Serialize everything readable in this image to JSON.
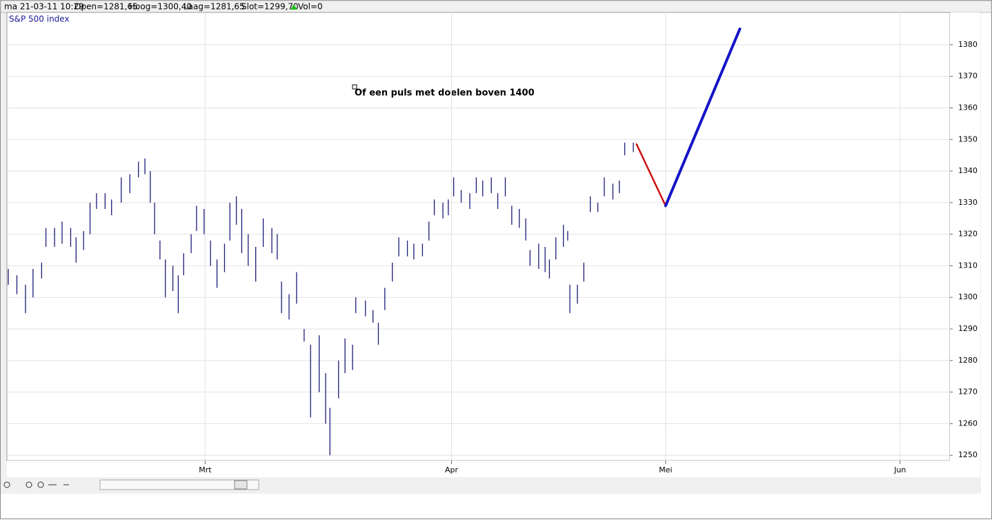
{
  "header": {
    "date": "ma 21-03-11 10:29",
    "open": "Open=1281,65",
    "high": "Hoog=1300,40",
    "low": "Laag=1281,65",
    "close": "Slot=1299,70",
    "volume": "Vol=0"
  },
  "chart_data": {
    "type": "hilo",
    "title": "S&P 500 index",
    "annotation": "Of een puls met doelen boven 1400",
    "xlim": [
      -18.3,
      69.1
    ],
    "xticks": [
      {
        "value": 0,
        "label": "Mrt"
      },
      {
        "value": 22.9,
        "label": "Apr"
      },
      {
        "value": 42.8,
        "label": "Mei"
      },
      {
        "value": 64.6,
        "label": "Jun"
      }
    ],
    "ylim": [
      1248.3,
      1389.8
    ],
    "yticks": [
      1250,
      1260,
      1270,
      1280,
      1290,
      1300,
      1310,
      1320,
      1330,
      1340,
      1350,
      1360,
      1370,
      1380
    ],
    "grid": true,
    "series": [
      {
        "color": "#1a1a78",
        "x": [
          -18.3,
          -17.5,
          -16.7,
          -16.0,
          -15.2,
          -14.8,
          -14.0,
          -13.3,
          -12.5,
          -12.0,
          -11.3,
          -10.7,
          -10.1,
          -9.3,
          -8.7,
          -7.8,
          -7.0,
          -6.2,
          -5.6,
          -5.1,
          -4.7,
          -4.2,
          -3.7,
          -3.0,
          -2.5,
          -2.0,
          -1.3,
          -0.8,
          -0.1,
          0.5,
          1.1,
          1.8,
          2.3,
          2.9,
          3.4,
          4.0,
          4.7,
          5.4,
          6.2,
          6.7,
          7.1,
          7.8,
          8.5,
          9.2,
          9.8,
          10.6,
          11.2,
          11.6,
          12.4,
          13.0,
          13.7,
          14.0,
          14.9,
          15.6,
          16.1,
          16.7,
          17.4,
          18.0,
          18.8,
          19.4,
          20.2,
          20.8,
          21.3,
          22.1,
          22.6,
          23.1,
          23.8,
          24.6,
          25.2,
          25.8,
          26.6,
          27.2,
          27.9,
          28.5,
          29.2,
          29.8,
          30.2,
          31.0,
          31.6,
          32.0,
          32.6,
          33.3,
          33.7,
          33.9,
          34.6,
          35.2,
          35.8,
          36.5,
          37.1,
          37.9,
          38.5,
          39.0,
          39.8
        ],
        "high": [
          1309,
          1307,
          1304,
          1309,
          1311,
          1322,
          1322,
          1324,
          1322,
          1319,
          1321,
          1330,
          1333,
          1333,
          1331,
          1338,
          1339,
          1343,
          1344,
          1340,
          1330,
          1318,
          1312,
          1310,
          1307,
          1314,
          1320,
          1329,
          1328,
          1318,
          1312,
          1317,
          1330,
          1332,
          1328,
          1320,
          1316,
          1325,
          1322,
          1320,
          1305,
          1301,
          1308,
          1290,
          1285,
          1288,
          1276,
          1265,
          1280,
          1287,
          1285,
          1300,
          1299,
          1296,
          1292,
          1303,
          1311,
          1319,
          1318,
          1317,
          1317,
          1324,
          1331,
          1330,
          1331,
          1338,
          1334,
          1333,
          1338,
          1337,
          1338,
          1333,
          1338,
          1329,
          1328,
          1325,
          1315,
          1317,
          1316,
          1312,
          1319,
          1323,
          1321,
          1304,
          1304,
          1311,
          1332,
          1330,
          1338,
          1336,
          1337,
          1349,
          1349
        ],
        "low": [
          1304,
          1301,
          1295,
          1300,
          1306,
          1316,
          1316,
          1317,
          1316,
          1311,
          1315,
          1320,
          1328,
          1328,
          1326,
          1330,
          1333,
          1338,
          1339,
          1330,
          1320,
          1312,
          1300,
          1302,
          1295,
          1307,
          1314,
          1321,
          1320,
          1310,
          1303,
          1308,
          1318,
          1323,
          1314,
          1310,
          1305,
          1316,
          1314,
          1312,
          1295,
          1293,
          1298,
          1286,
          1262,
          1270,
          1260,
          1250,
          1268,
          1276,
          1277,
          1295,
          1294,
          1292,
          1285,
          1296,
          1305,
          1313,
          1313,
          1312,
          1313,
          1318,
          1326,
          1325,
          1326,
          1332,
          1330,
          1328,
          1333,
          1332,
          1333,
          1328,
          1332,
          1323,
          1322,
          1318,
          1310,
          1309,
          1308,
          1306,
          1312,
          1316,
          1318,
          1295,
          1298,
          1305,
          1327,
          1327,
          1332,
          1331,
          1333,
          1345,
          1346
        ]
      }
    ],
    "projections": [
      {
        "color": "#cc1010",
        "x": [
          40.1,
          42.8
        ],
        "values": [
          1348.5,
          1329
        ]
      },
      {
        "color": "#1414c8",
        "x": [
          42.8,
          49.7
        ],
        "values": [
          1329,
          1385
        ]
      }
    ]
  }
}
